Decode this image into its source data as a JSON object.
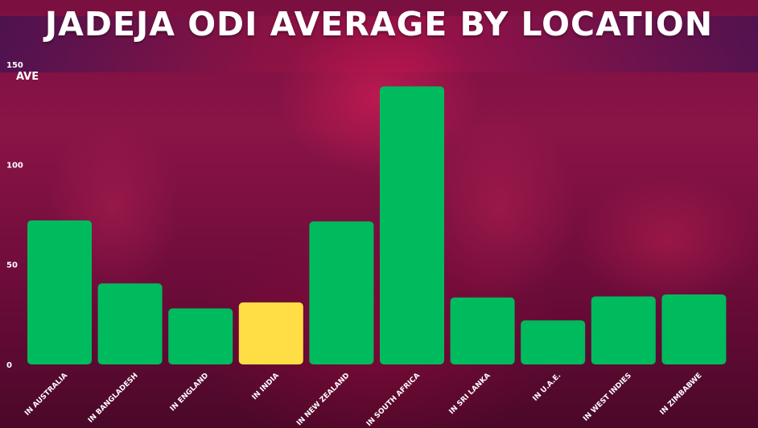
{
  "chart_data": {
    "type": "bar",
    "title": "JADEJA ODI AVERAGE BY LOCATION",
    "ylabel": "AVE",
    "xlabel": "",
    "ylim": [
      0,
      150
    ],
    "yticks": [
      0,
      50,
      100,
      150
    ],
    "grid": false,
    "categories": [
      "IN AUSTRALIA",
      "IN BANGLADESH",
      "IN ENGLAND",
      "IN INDIA",
      "IN NEW ZEALAND",
      "IN SOUTH AFRICA",
      "IN SRI LANKA",
      "IN U.A.E.",
      "IN WEST INDIES",
      "IN ZIMBABWE"
    ],
    "values": [
      72,
      40.5,
      28,
      31,
      71.5,
      139,
      33.5,
      22,
      34,
      35
    ],
    "highlight_category": "IN INDIA",
    "colors": {
      "bar": "#00ba5e",
      "highlight": "#ffdd44",
      "text": "#ffffff"
    }
  }
}
